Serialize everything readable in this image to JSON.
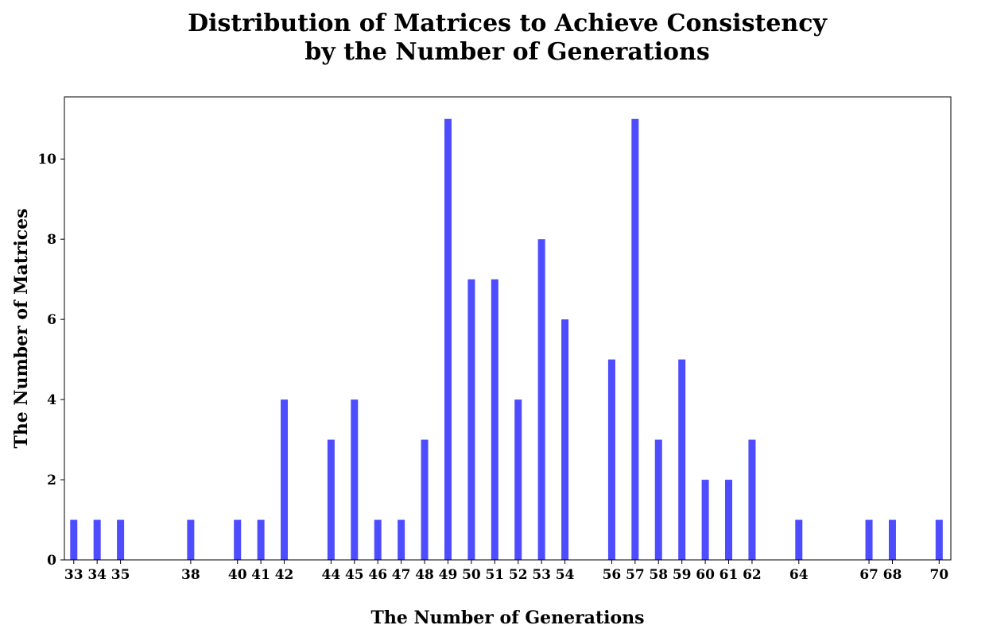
{
  "chart_data": {
    "type": "bar",
    "title_line1": "Distribution of Matrices to Achieve Consistency",
    "title_line2": "by the Number of Generations",
    "xlabel": "The Number of Generations",
    "ylabel": "The Number of Matrices",
    "bar_color": "#4d4dff",
    "xlim": [
      32.6,
      70.5
    ],
    "ylim": [
      0,
      11.55
    ],
    "yticks": [
      0,
      2,
      4,
      6,
      8,
      10
    ],
    "x": [
      33,
      34,
      35,
      38,
      40,
      41,
      42,
      44,
      45,
      46,
      47,
      48,
      49,
      50,
      51,
      52,
      53,
      54,
      56,
      57,
      58,
      59,
      60,
      61,
      62,
      64,
      67,
      68,
      70
    ],
    "values": [
      1,
      1,
      1,
      1,
      1,
      1,
      4,
      3,
      4,
      1,
      1,
      3,
      11,
      7,
      7,
      4,
      8,
      6,
      5,
      11,
      3,
      5,
      2,
      2,
      3,
      1,
      1,
      1,
      1
    ]
  }
}
